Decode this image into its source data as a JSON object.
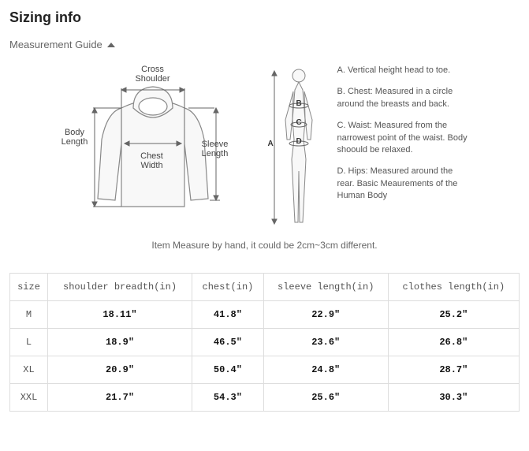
{
  "title": "Sizing info",
  "guide_label": "Measurement Guide",
  "garment_labels": {
    "cross_shoulder": "Cross\nShoulder",
    "body_length": "Body\nLength",
    "chest_width": "Chest\nWidth",
    "sleeve_length": "Sleeve\nLength"
  },
  "body_markers": {
    "a": "A",
    "b": "B",
    "c": "C",
    "d": "D"
  },
  "descriptions": {
    "a": "A. Vertical height head to toe.",
    "b": "B. Chest: Measured in a circle around the breasts and back.",
    "c": "C. Waist: Measured from the narrowest point of the waist. Body shoould be relaxed.",
    "d": "D. Hips: Measured around the rear. Basic Meaurements of the Human Body"
  },
  "note": "Item Measure by hand, it could be 2cm~3cm different.",
  "table": {
    "columns": [
      "size",
      "shoulder breadth(in)",
      "chest(in)",
      "sleeve length(in)",
      "clothes length(in)"
    ],
    "rows": [
      [
        "M",
        "18.11\"",
        "41.8\"",
        "22.9\"",
        "25.2\""
      ],
      [
        "L",
        "18.9\"",
        "46.5\"",
        "23.6\"",
        "26.8\""
      ],
      [
        "XL",
        "20.9\"",
        "50.4\"",
        "24.8\"",
        "28.7\""
      ],
      [
        "XXL",
        "21.7\"",
        "54.3\"",
        "25.6\"",
        "30.3\""
      ]
    ]
  },
  "colors": {
    "stroke": "#888888",
    "fill": "#f7f7f7",
    "text": "#444444",
    "table_border": "#dddddd"
  }
}
